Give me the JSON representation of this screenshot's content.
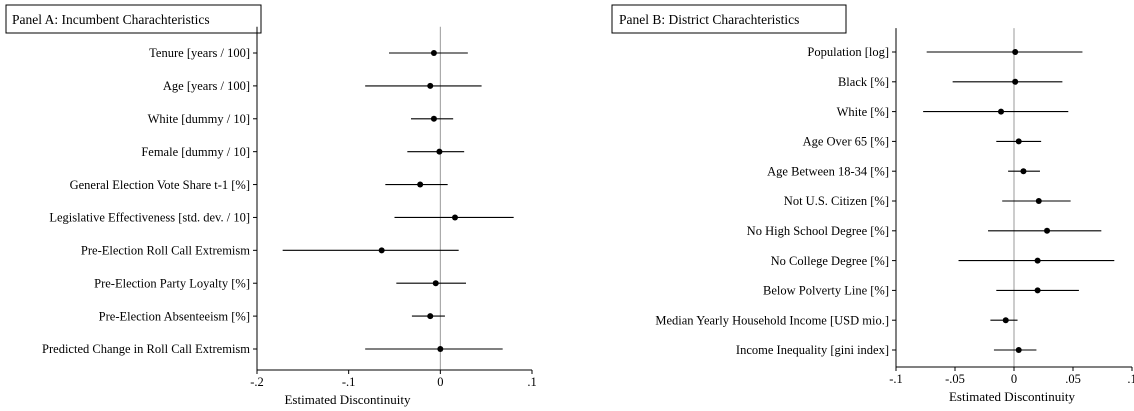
{
  "chart_data": [
    {
      "type": "scatter",
      "title": "Panel A: Incumbent Charachteristics",
      "xlabel": "Estimated Discontinuity",
      "xlim": [
        -0.2,
        0.1
      ],
      "xticks": [
        -0.2,
        -0.1,
        0,
        0.1
      ],
      "xtick_labels": [
        "-.2",
        "-.1",
        "0",
        ".1"
      ],
      "reference_line": 0,
      "grid": false,
      "series": [
        {
          "points": [
            {
              "label": "Tenure [years / 100]",
              "estimate": -0.007,
              "ci": [
                -0.056,
                0.03
              ]
            },
            {
              "label": "Age [years / 100]",
              "estimate": -0.011,
              "ci": [
                -0.082,
                0.045
              ]
            },
            {
              "label": "White [dummy / 10]",
              "estimate": -0.007,
              "ci": [
                -0.032,
                0.014
              ]
            },
            {
              "label": "Female [dummy / 10]",
              "estimate": -0.001,
              "ci": [
                -0.036,
                0.026
              ]
            },
            {
              "label": "General Election Vote Share t-1 [%]",
              "estimate": -0.022,
              "ci": [
                -0.06,
                0.008
              ]
            },
            {
              "label": "Legislative Effectiveness [std. dev. / 10]",
              "estimate": 0.016,
              "ci": [
                -0.05,
                0.08
              ]
            },
            {
              "label": "Pre-Election Roll Call Extremism",
              "estimate": -0.064,
              "ci": [
                -0.172,
                0.02
              ]
            },
            {
              "label": "Pre-Election Party Loyalty [%]",
              "estimate": -0.005,
              "ci": [
                -0.048,
                0.028
              ]
            },
            {
              "label": "Pre-Election Absenteeism [%]",
              "estimate": -0.011,
              "ci": [
                -0.031,
                0.005
              ]
            },
            {
              "label": "Predicted Change in Roll Call Extremism",
              "estimate": 0.0,
              "ci": [
                -0.082,
                0.068
              ]
            }
          ]
        }
      ]
    },
    {
      "type": "scatter",
      "title": "Panel B: District Charachteristics",
      "xlabel": "Estimated Discontinuity",
      "xlim": [
        -0.1,
        0.1
      ],
      "xticks": [
        -0.1,
        -0.05,
        0,
        0.05,
        0.1
      ],
      "xtick_labels": [
        "-.1",
        "-.05",
        "0",
        ".05",
        ".1"
      ],
      "reference_line": 0,
      "grid": false,
      "series": [
        {
          "points": [
            {
              "label": "Population [log]",
              "estimate": 0.001,
              "ci": [
                -0.074,
                0.058
              ]
            },
            {
              "label": "Black [%]",
              "estimate": 0.001,
              "ci": [
                -0.052,
                0.041
              ]
            },
            {
              "label": "White [%]",
              "estimate": -0.011,
              "ci": [
                -0.077,
                0.046
              ]
            },
            {
              "label": "Age Over 65 [%]",
              "estimate": 0.004,
              "ci": [
                -0.015,
                0.023
              ]
            },
            {
              "label": "Age Between 18-34 [%]",
              "estimate": 0.008,
              "ci": [
                -0.005,
                0.022
              ]
            },
            {
              "label": "Not U.S. Citizen [%]",
              "estimate": 0.021,
              "ci": [
                -0.01,
                0.048
              ]
            },
            {
              "label": "No High School Degree [%]",
              "estimate": 0.028,
              "ci": [
                -0.022,
                0.074
              ]
            },
            {
              "label": "No College Degree [%]",
              "estimate": 0.02,
              "ci": [
                -0.047,
                0.085
              ]
            },
            {
              "label": "Below Polverty Line [%]",
              "estimate": 0.02,
              "ci": [
                -0.015,
                0.055
              ]
            },
            {
              "label": "Median Yearly Household Income [USD mio.]",
              "estimate": -0.007,
              "ci": [
                -0.02,
                0.003
              ]
            },
            {
              "label": "Income Inequality [gini index]",
              "estimate": 0.004,
              "ci": [
                -0.017,
                0.019
              ]
            }
          ]
        }
      ]
    }
  ]
}
